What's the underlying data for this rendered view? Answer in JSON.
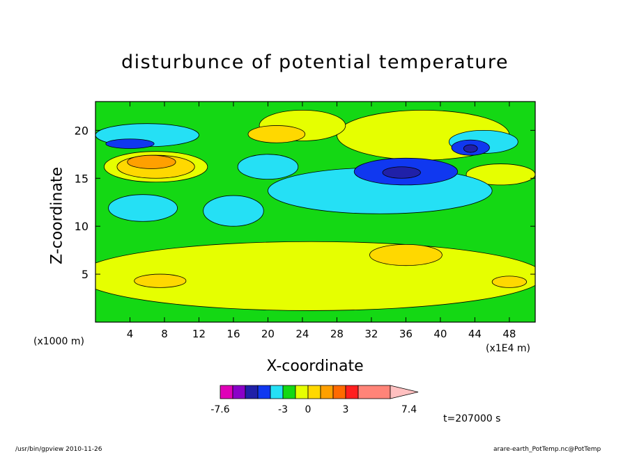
{
  "chart_data": {
    "type": "heatmap",
    "title": "disturbunce of potential temperature",
    "xlabel": "X-coordinate",
    "ylabel": "Z-coordinate",
    "x_unit_note": "(x1000 m)",
    "x_scale_note": "(x1E4 m)",
    "time_label": "t=207000 s",
    "xlim": [
      0,
      51
    ],
    "ylim": [
      0,
      23
    ],
    "x_ticks": [
      4,
      8,
      12,
      16,
      20,
      24,
      28,
      32,
      36,
      40,
      44,
      48
    ],
    "y_ticks": [
      5,
      10,
      15,
      20
    ],
    "levels": [
      -7.6,
      -3,
      0,
      3,
      7.4
    ],
    "colorbar": {
      "labels": [
        "-7.6",
        "-3",
        "0",
        "3",
        "7.4"
      ],
      "colors": [
        "#e000b8",
        "#8a00c8",
        "#2020a8",
        "#1038f0",
        "#25e0f5",
        "#14d814",
        "#e6ff00",
        "#ffd800",
        "#ffa000",
        "#ff6a00",
        "#ff1f1f",
        "#ff8478",
        "#ffc0c0"
      ]
    },
    "background_value_color": "#14d814",
    "regions": [
      {
        "value": 1.0,
        "color": "#e6ff00",
        "xc": 25,
        "yc": 4.8,
        "rx": 27,
        "ry": 3.6
      },
      {
        "value": 1.0,
        "color": "#e6ff00",
        "xc": 38,
        "yc": 19.5,
        "rx": 10,
        "ry": 2.6
      },
      {
        "value": 1.0,
        "color": "#e6ff00",
        "xc": 24,
        "yc": 20.5,
        "rx": 5,
        "ry": 1.6
      },
      {
        "value": 1.0,
        "color": "#e6ff00",
        "xc": 7,
        "yc": 16.2,
        "rx": 6,
        "ry": 1.6
      },
      {
        "value": 1.0,
        "color": "#e6ff00",
        "xc": 47,
        "yc": 15.4,
        "rx": 4,
        "ry": 1.1
      },
      {
        "value": 2.0,
        "color": "#ffd800",
        "xc": 36,
        "yc": 7.0,
        "rx": 4.2,
        "ry": 1.1
      },
      {
        "value": 2.0,
        "color": "#ffd800",
        "xc": 21,
        "yc": 19.6,
        "rx": 3.3,
        "ry": 0.9
      },
      {
        "value": 2.0,
        "color": "#ffd800",
        "xc": 7,
        "yc": 16.2,
        "rx": 4.5,
        "ry": 1.2
      },
      {
        "value": 2.0,
        "color": "#ffd800",
        "xc": 7.5,
        "yc": 4.3,
        "rx": 3,
        "ry": 0.7
      },
      {
        "value": 2.0,
        "color": "#ffd800",
        "xc": 48,
        "yc": 4.2,
        "rx": 2,
        "ry": 0.6
      },
      {
        "value": 3.0,
        "color": "#ffa000",
        "xc": 6.5,
        "yc": 16.7,
        "rx": 2.8,
        "ry": 0.7
      },
      {
        "value": -1.0,
        "color": "#25e0f5",
        "xc": 33,
        "yc": 13.7,
        "rx": 13,
        "ry": 2.4
      },
      {
        "value": -1.0,
        "color": "#25e0f5",
        "xc": 16,
        "yc": 11.6,
        "rx": 3.5,
        "ry": 1.6
      },
      {
        "value": -1.0,
        "color": "#25e0f5",
        "xc": 5.5,
        "yc": 11.9,
        "rx": 4,
        "ry": 1.4
      },
      {
        "value": -1.0,
        "color": "#25e0f5",
        "xc": 6,
        "yc": 19.5,
        "rx": 6,
        "ry": 1.2
      },
      {
        "value": -1.0,
        "color": "#25e0f5",
        "xc": 20,
        "yc": 16.2,
        "rx": 3.5,
        "ry": 1.3
      },
      {
        "value": -1.0,
        "color": "#25e0f5",
        "xc": 45,
        "yc": 18.8,
        "rx": 4,
        "ry": 1.2
      },
      {
        "value": -2.0,
        "color": "#1038f0",
        "xc": 36,
        "yc": 15.7,
        "rx": 6,
        "ry": 1.4
      },
      {
        "value": -2.0,
        "color": "#1038f0",
        "xc": 4,
        "yc": 18.6,
        "rx": 2.8,
        "ry": 0.5
      },
      {
        "value": -2.0,
        "color": "#1038f0",
        "xc": 43.5,
        "yc": 18.2,
        "rx": 2.2,
        "ry": 0.8
      },
      {
        "value": -3.0,
        "color": "#2020a8",
        "xc": 35.5,
        "yc": 15.6,
        "rx": 2.2,
        "ry": 0.6
      },
      {
        "value": -3.0,
        "color": "#2020a8",
        "xc": 43.5,
        "yc": 18.1,
        "rx": 0.8,
        "ry": 0.4
      }
    ]
  },
  "footer": {
    "left": "/usr/bin/gpview  2010-11-26",
    "right": "arare-earth_PotTemp.nc@PotTemp"
  }
}
